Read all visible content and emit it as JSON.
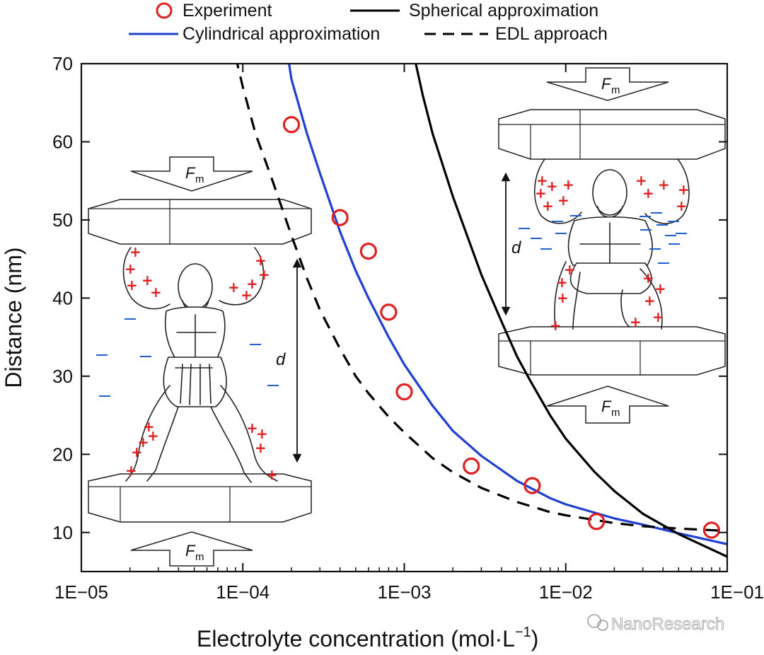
{
  "chart_data": {
    "type": "line",
    "title": "",
    "xlabel": "Electrolyte concentration (mol·L",
    "xlabel_superscript": "−1",
    "xlabel_close": ")",
    "ylabel": "Distance (nm)",
    "x_scale": "log",
    "xlim": [
      1e-05,
      0.1
    ],
    "ylim": [
      5,
      70
    ],
    "x_ticks": [
      {
        "value": 1e-05,
        "label": "1E−05"
      },
      {
        "value": 0.0001,
        "label": "1E−04"
      },
      {
        "value": 0.001,
        "label": "1E−03"
      },
      {
        "value": 0.01,
        "label": "1E−02"
      },
      {
        "value": 0.1,
        "label": "1E−01"
      }
    ],
    "y_ticks": [
      10,
      20,
      30,
      40,
      50,
      60,
      70
    ],
    "grid": false,
    "legend_position": "top",
    "series": [
      {
        "name": "Experiment",
        "kind": "scatter",
        "color": "#e02020",
        "x": [
          0.0002,
          0.0004,
          0.0006,
          0.0008,
          0.001,
          0.0026,
          0.0062,
          0.0155,
          0.08
        ],
        "y": [
          62.2,
          50.3,
          46.0,
          38.2,
          28.0,
          18.5,
          16.0,
          11.4,
          10.3
        ]
      },
      {
        "name": "Cylindrical approximation",
        "kind": "line",
        "color": "#1f3fd0",
        "dash": "solid",
        "x": [
          0.00019,
          0.0002,
          0.00025,
          0.0003,
          0.0004,
          0.0005,
          0.0006,
          0.0008,
          0.001,
          0.0015,
          0.002,
          0.003,
          0.005,
          0.008,
          0.01,
          0.02,
          0.03,
          0.05,
          0.1
        ],
        "y": [
          71.0,
          68.0,
          61.0,
          56.0,
          48.5,
          43.5,
          40.0,
          35.0,
          31.5,
          26.2,
          23.0,
          19.8,
          16.6,
          14.4,
          13.6,
          11.8,
          11.0,
          9.9,
          8.5
        ]
      },
      {
        "name": "Spherical approximation",
        "kind": "line",
        "color": "#000000",
        "dash": "solid",
        "x": [
          0.00115,
          0.0013,
          0.0015,
          0.002,
          0.0025,
          0.003,
          0.004,
          0.005,
          0.006,
          0.008,
          0.01,
          0.015,
          0.02,
          0.03,
          0.05,
          0.1
        ],
        "y": [
          71.0,
          66.0,
          61.0,
          53.0,
          47.5,
          43.0,
          37.0,
          32.5,
          29.5,
          25.0,
          22.0,
          17.8,
          15.3,
          12.4,
          9.8,
          6.9
        ]
      },
      {
        "name": "EDL approach",
        "kind": "line",
        "color": "#000000",
        "dash": "dashed",
        "x": [
          9e-05,
          0.0001,
          0.00012,
          0.00015,
          0.0002,
          0.00025,
          0.0003,
          0.0004,
          0.0005,
          0.0006,
          0.0008,
          0.001,
          0.0015,
          0.002,
          0.003,
          0.005,
          0.008,
          0.01,
          0.02,
          0.03,
          0.05,
          0.1
        ],
        "y": [
          71.0,
          67.0,
          61.0,
          55.5,
          48.0,
          42.5,
          38.5,
          33.5,
          30.0,
          27.8,
          24.8,
          22.8,
          19.5,
          17.7,
          15.7,
          13.9,
          12.6,
          12.2,
          11.2,
          10.8,
          10.5,
          10.2
        ]
      }
    ]
  },
  "insets": {
    "force_label": "F",
    "force_subscript": "m",
    "distance_label": "d",
    "positive_charge": "+",
    "negative_charge": "–"
  },
  "watermark": "NanoResearch"
}
